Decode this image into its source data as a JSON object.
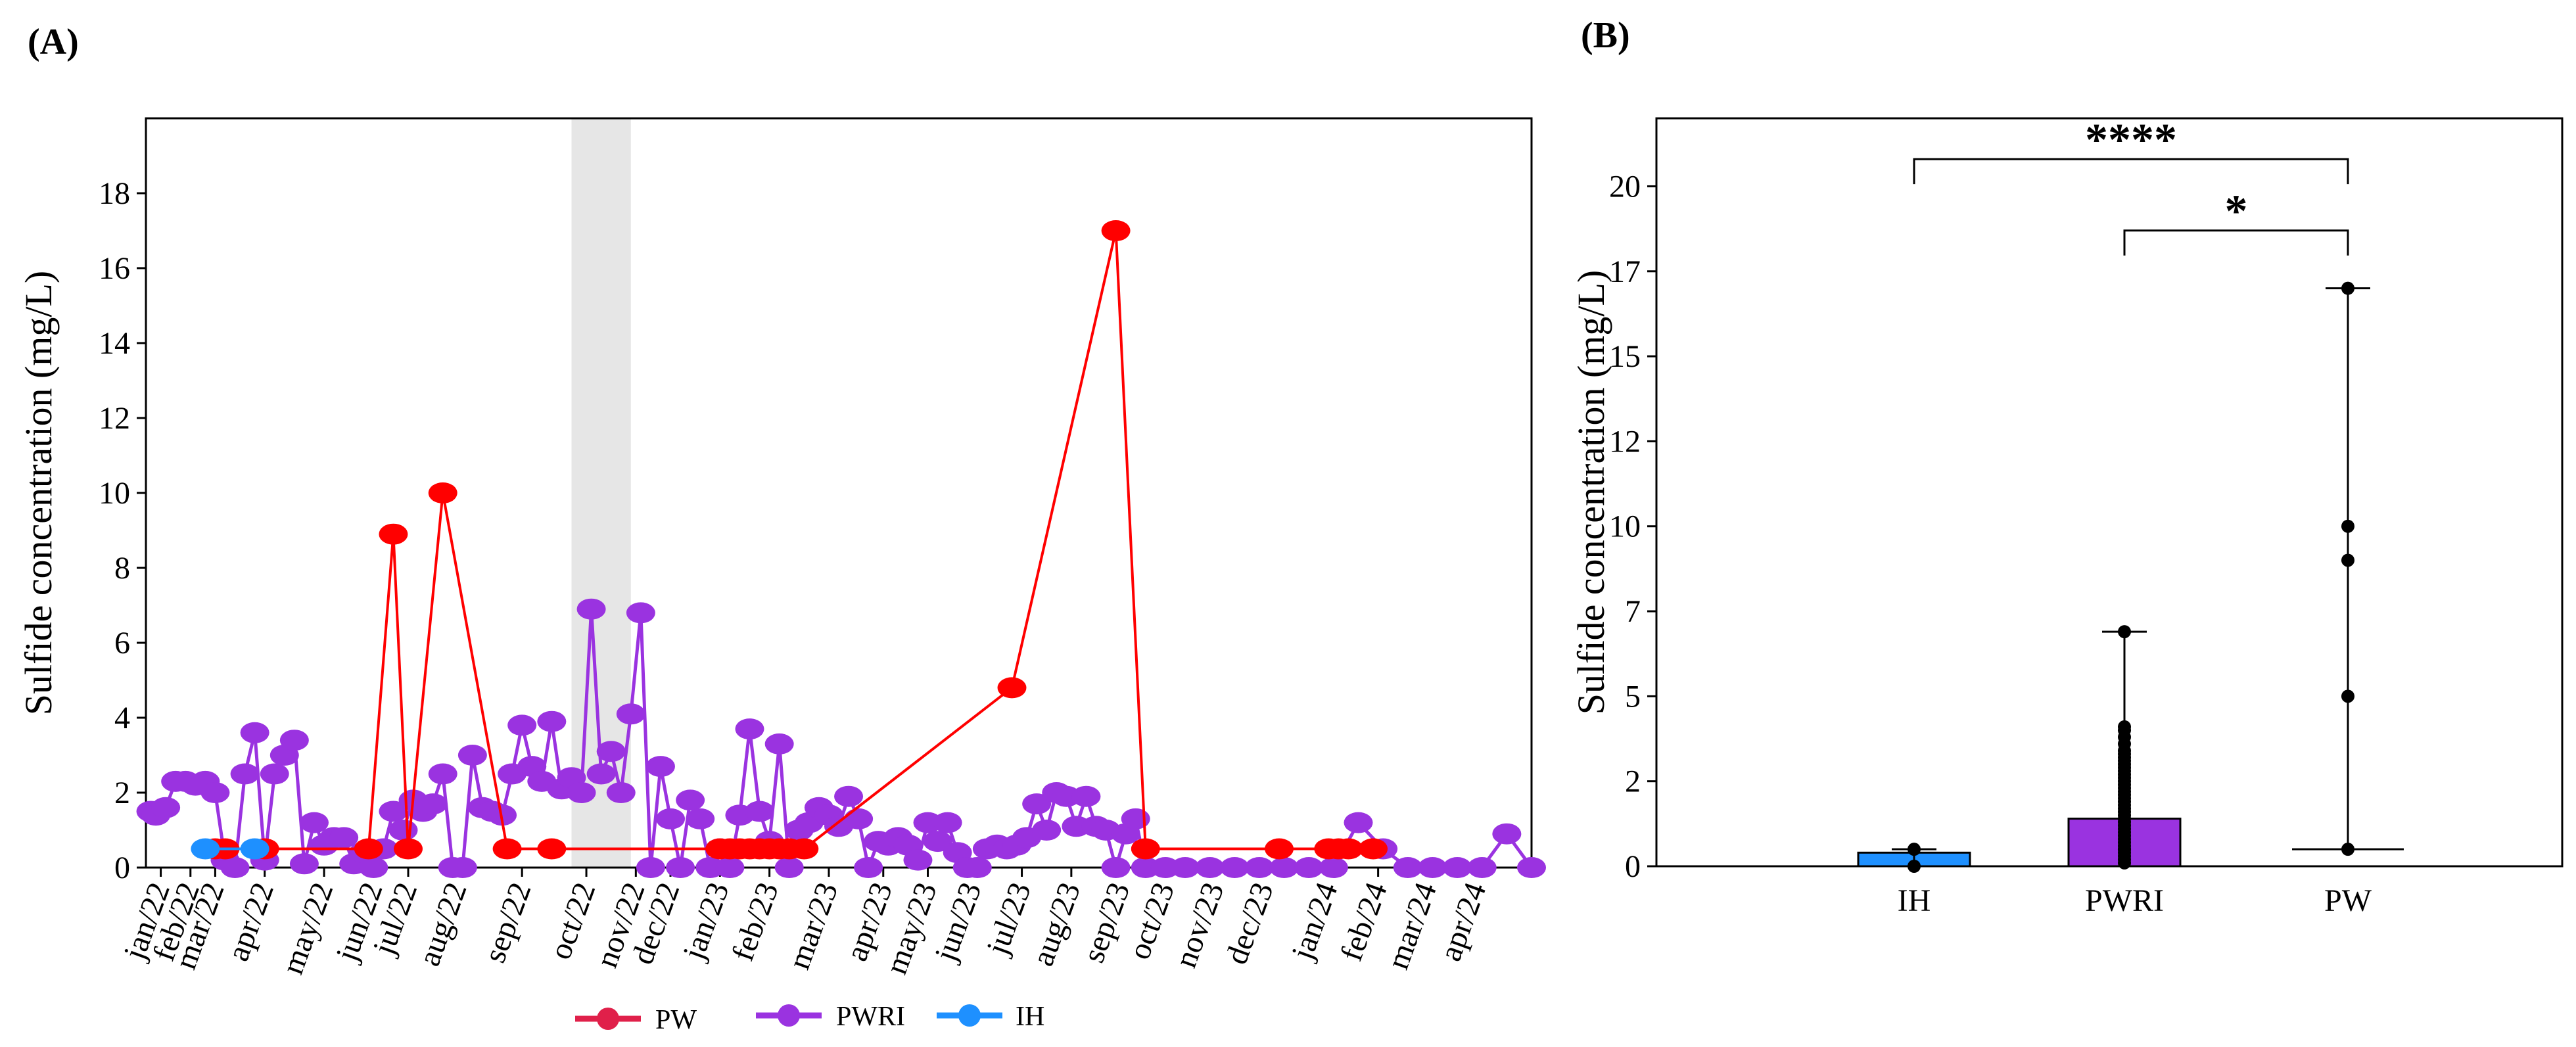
{
  "chart_data": [
    {
      "panel": "(A)",
      "type": "line",
      "ylabel": "Sulfide concentration (mg/L)",
      "ylim": [
        0,
        20
      ],
      "yticks": [
        0,
        2,
        4,
        6,
        8,
        10,
        12,
        14,
        16,
        18
      ],
      "xlim": [
        0,
        28
      ],
      "x_tick_labels": [
        "jan/22",
        "feb/22",
        "mar/22",
        "apr/22",
        "may/22",
        "jun/22",
        "jul/22",
        "aug/22",
        "sep/22",
        "oct/22",
        "nov/22",
        "dec/22",
        "jan/23",
        "feb/23",
        "mar/23",
        "apr/23",
        "may/23",
        "jun/23",
        "jul/23",
        "aug/23",
        "sep/23",
        "oct/23",
        "nov/23",
        "dec/23",
        "jan/24",
        "feb/24",
        "mar/24",
        "apr/24"
      ],
      "x_tick_positions": [
        0.3,
        0.9,
        1.4,
        2.4,
        3.6,
        4.6,
        5.3,
        6.3,
        7.6,
        8.9,
        9.9,
        10.6,
        11.6,
        12.6,
        13.8,
        14.9,
        15.8,
        16.7,
        17.7,
        18.7,
        19.7,
        20.6,
        21.6,
        22.6,
        23.9,
        24.9,
        25.9,
        26.9
      ],
      "shaded_region": [
        8.6,
        9.8
      ],
      "legend": [
        "PW",
        "PWRI",
        "IH"
      ],
      "series": [
        {
          "name": "PW",
          "color": "#ff0000",
          "x": [
            1.4,
            1.6,
            2.4,
            4.5,
            5.0,
            5.3,
            6.0,
            7.3,
            8.2,
            11.6,
            11.8,
            12.0,
            12.2,
            12.4,
            12.6,
            12.8,
            13.0,
            13.3,
            17.5,
            19.6,
            20.2,
            22.9,
            23.9,
            24.1,
            24.3,
            24.8
          ],
          "y": [
            0.5,
            0.5,
            0.5,
            0.5,
            8.9,
            0.5,
            10.0,
            0.5,
            0.5,
            0.5,
            0.5,
            0.5,
            0.5,
            0.5,
            0.5,
            0.5,
            0.5,
            0.5,
            4.8,
            17.0,
            0.5,
            0.5,
            0.5,
            0.5,
            0.5,
            0.5
          ]
        },
        {
          "name": "PWRI",
          "color": "#9a33e0",
          "x": [
            0.1,
            0.2,
            0.4,
            0.6,
            0.8,
            1.0,
            1.2,
            1.4,
            1.6,
            1.8,
            2.0,
            2.2,
            2.4,
            2.6,
            2.8,
            3.0,
            3.2,
            3.4,
            3.6,
            3.8,
            4.0,
            4.2,
            4.4,
            4.6,
            4.8,
            5.0,
            5.2,
            5.4,
            5.6,
            5.8,
            6.0,
            6.2,
            6.4,
            6.6,
            6.8,
            7.0,
            7.2,
            7.4,
            7.6,
            7.8,
            8.0,
            8.2,
            8.4,
            8.6,
            8.8,
            9.0,
            9.2,
            9.4,
            9.6,
            9.8,
            10.0,
            10.2,
            10.4,
            10.6,
            10.8,
            11.0,
            11.2,
            11.4,
            11.6,
            11.8,
            12.0,
            12.2,
            12.4,
            12.6,
            12.8,
            13.0,
            13.2,
            13.4,
            13.6,
            13.8,
            14.0,
            14.2,
            14.4,
            14.6,
            14.8,
            15.0,
            15.2,
            15.4,
            15.6,
            15.8,
            16.0,
            16.2,
            16.4,
            16.6,
            16.8,
            17.0,
            17.2,
            17.4,
            17.6,
            17.8,
            18.0,
            18.2,
            18.4,
            18.6,
            18.8,
            19.0,
            19.2,
            19.4,
            19.6,
            19.8,
            20.0,
            20.2,
            20.6,
            21.0,
            21.5,
            22.0,
            22.5,
            23.0,
            23.5,
            24.0,
            24.5,
            25.0,
            25.5,
            26.0,
            26.5,
            27.0,
            27.5,
            28.0
          ],
          "y": [
            1.5,
            1.4,
            1.6,
            2.3,
            2.3,
            2.2,
            2.3,
            2.0,
            0.2,
            0.0,
            2.5,
            3.6,
            0.2,
            2.5,
            3.0,
            3.4,
            0.1,
            1.2,
            0.6,
            0.8,
            0.8,
            0.1,
            0.4,
            0.0,
            0.5,
            1.5,
            1.0,
            1.8,
            1.5,
            1.7,
            2.5,
            0.0,
            0.0,
            3.0,
            1.6,
            1.5,
            1.4,
            2.5,
            3.8,
            2.7,
            2.3,
            3.9,
            2.1,
            2.4,
            2.0,
            6.9,
            2.5,
            3.1,
            2.0,
            4.1,
            6.8,
            0.0,
            2.7,
            1.3,
            0.0,
            1.8,
            1.3,
            0.0,
            0.5,
            0.0,
            1.4,
            3.7,
            1.5,
            0.7,
            3.3,
            0.0,
            1.0,
            1.2,
            1.6,
            1.4,
            1.1,
            1.9,
            1.3,
            0.0,
            0.7,
            0.6,
            0.8,
            0.6,
            0.2,
            1.2,
            0.7,
            1.2,
            0.4,
            0.0,
            0.0,
            0.5,
            0.6,
            0.5,
            0.6,
            0.8,
            1.7,
            1.0,
            2.0,
            1.9,
            1.1,
            1.9,
            1.1,
            1.0,
            0.0,
            0.9,
            1.3,
            0.0,
            0.0,
            0.0,
            0.0,
            0.0,
            0.0,
            0.0,
            0.0,
            0.0,
            1.2,
            0.5,
            0.0,
            0.0,
            0.0,
            0.0,
            0.9,
            0.0
          ]
        },
        {
          "name": "IH",
          "color": "#1e90ff",
          "x": [
            1.2,
            2.2
          ],
          "y": [
            0.5,
            0.5
          ]
        }
      ]
    },
    {
      "panel": "(B)",
      "type": "bar",
      "ylabel": "Sulfide concentration (mg/L)",
      "ylim": [
        0,
        22
      ],
      "ytick_values": [
        0,
        2.5,
        5,
        7.5,
        10,
        12.5,
        15,
        17.5,
        20
      ],
      "ytick_labels": [
        "0",
        "2",
        "5",
        "7",
        "10",
        "12",
        "15",
        "17",
        "20"
      ],
      "categories": [
        "IH",
        "PWRI",
        "PW"
      ],
      "values": [
        0.4,
        1.4,
        0.5
      ],
      "colors": [
        "#1e90ff",
        "#9a33e0",
        "#ffffff"
      ],
      "error_bars": [
        [
          0.0,
          0.5
        ],
        [
          0.0,
          6.9
        ],
        [
          0.5,
          17.0
        ]
      ],
      "points": [
        [
          0.0,
          0.5
        ],
        [
          0.1,
          0.2,
          0.3,
          0.4,
          0.5,
          0.5,
          0.6,
          0.7,
          0.8,
          0.9,
          1.0,
          1.1,
          1.2,
          1.3,
          1.4,
          1.5,
          1.6,
          1.7,
          1.8,
          1.9,
          2.0,
          2.1,
          2.2,
          2.3,
          2.4,
          2.5,
          2.6,
          2.7,
          2.8,
          2.9,
          3.0,
          3.1,
          3.2,
          3.3,
          3.4,
          3.6,
          3.8,
          4.0,
          4.1,
          6.9
        ],
        [
          0.5,
          5.0,
          9.0,
          10.0,
          17.0
        ]
      ],
      "significance": [
        {
          "from": "IH",
          "to": "PW",
          "label": "****",
          "y": 20.8
        },
        {
          "from": "PWRI",
          "to": "PW",
          "label": "*",
          "y": 18.7
        }
      ]
    }
  ],
  "panel_labels": {
    "a": "(A)",
    "b": "(B)"
  },
  "legend_labels": {
    "pw": "PW",
    "pwri": "PWRI",
    "ih": "IH"
  },
  "colors": {
    "pw": "#ff0000",
    "pwri": "#9a33e0",
    "ih": "#1e90ff",
    "shade": "#e6e6e6"
  }
}
